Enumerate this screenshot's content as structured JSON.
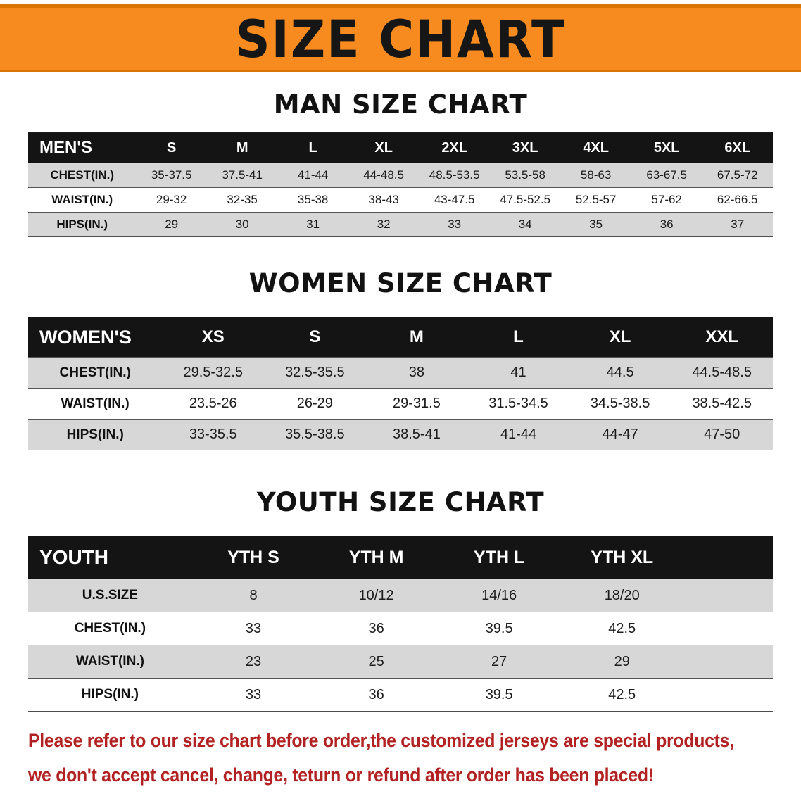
{
  "banner": {
    "title": "SIZE CHART",
    "bg_color": "#f78b1f",
    "border_color": "#da7404"
  },
  "colors": {
    "header_row_bg": "#141414",
    "header_row_text": "#ffffff",
    "alt_row_gray": "#d7d7d7",
    "notice_red": "#b22222"
  },
  "sections": {
    "men": {
      "heading": "MAN SIZE CHART",
      "table": {
        "header": [
          "MEN'S",
          "S",
          "M",
          "L",
          "XL",
          "2XL",
          "3XL",
          "4XL",
          "5XL",
          "6XL"
        ],
        "rows": [
          {
            "label": "CHEST(IN.)",
            "values": [
              "35-37.5",
              "37.5-41",
              "41-44",
              "44-48.5",
              "48.5-53.5",
              "53.5-58",
              "58-63",
              "63-67.5",
              "67.5-72"
            ]
          },
          {
            "label": "WAIST(IN.)",
            "values": [
              "29-32",
              "32-35",
              "35-38",
              "38-43",
              "43-47.5",
              "47.5-52.5",
              "52.5-57",
              "57-62",
              "62-66.5"
            ]
          },
          {
            "label": "HIPS(IN.)",
            "values": [
              "29",
              "30",
              "31",
              "32",
              "33",
              "34",
              "35",
              "36",
              "37"
            ]
          }
        ],
        "filler": false
      }
    },
    "women": {
      "heading": "WOMEN SIZE CHART",
      "table": {
        "header": [
          "WOMEN'S",
          "XS",
          "S",
          "M",
          "L",
          "XL",
          "XXL"
        ],
        "rows": [
          {
            "label": "CHEST(IN.)",
            "values": [
              "29.5-32.5",
              "32.5-35.5",
              "38",
              "41",
              "44.5",
              "44.5-48.5"
            ]
          },
          {
            "label": "WAIST(IN.)",
            "values": [
              "23.5-26",
              "26-29",
              "29-31.5",
              "31.5-34.5",
              "34.5-38.5",
              "38.5-42.5"
            ]
          },
          {
            "label": "HIPS(IN.)",
            "values": [
              "33-35.5",
              "35.5-38.5",
              "38.5-41",
              "41-44",
              "44-47",
              "47-50"
            ]
          }
        ],
        "filler": false
      }
    },
    "youth": {
      "heading": "YOUTH SIZE CHART",
      "table": {
        "header": [
          "YOUTH",
          "YTH S",
          "YTH M",
          "YTH L",
          "YTH XL"
        ],
        "rows": [
          {
            "label": "U.S.SIZE",
            "values": [
              "8",
              "10/12",
              "14/16",
              "18/20"
            ]
          },
          {
            "label": "CHEST(IN.)",
            "values": [
              "33",
              "36",
              "39.5",
              "42.5"
            ]
          },
          {
            "label": "WAIST(IN.)",
            "values": [
              "23",
              "25",
              "27",
              "29"
            ]
          },
          {
            "label": "HIPS(IN.)",
            "values": [
              "33",
              "36",
              "39.5",
              "42.5"
            ]
          }
        ],
        "filler": true
      }
    }
  },
  "footer": {
    "line1": "Please refer to our size chart before order,the customized jerseys are special products,",
    "line2": "we don't accept cancel, change, teturn or refund after order has been placed!"
  }
}
